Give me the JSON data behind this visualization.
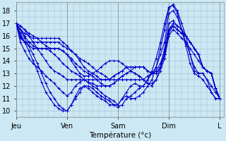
{
  "xlabel": "Température (°c)",
  "bg_color": "#cce8f4",
  "line_color": "#0000cc",
  "grid_color": "#99bbcc",
  "xtick_labels": [
    "Jeu",
    "Ven",
    "Sam",
    "Dim",
    "L"
  ],
  "xtick_positions": [
    0,
    24,
    48,
    72,
    96
  ],
  "ytick_range": [
    10,
    11,
    12,
    13,
    14,
    15,
    16,
    17,
    18
  ],
  "ylim": [
    9.5,
    18.7
  ],
  "xlim": [
    0,
    98
  ],
  "time_hours": [
    0,
    2,
    4,
    6,
    8,
    10,
    12,
    14,
    16,
    18,
    20,
    22,
    24,
    26,
    28,
    30,
    32,
    34,
    36,
    38,
    40,
    42,
    44,
    46,
    48,
    50,
    52,
    54,
    56,
    58,
    60,
    62,
    64,
    66,
    68,
    70,
    72,
    74,
    76,
    78,
    80,
    82,
    84,
    86,
    88,
    90,
    92,
    94,
    96
  ],
  "ensemble_members": [
    [
      17.0,
      16.5,
      15.8,
      15.2,
      14.5,
      13.8,
      13.0,
      12.2,
      11.5,
      11.0,
      10.5,
      10.2,
      10.0,
      10.5,
      11.2,
      11.8,
      12.0,
      11.8,
      11.5,
      11.2,
      11.0,
      10.8,
      10.5,
      10.5,
      10.5,
      11.0,
      11.2,
      11.0,
      11.0,
      11.2,
      11.5,
      12.0,
      12.5,
      13.5,
      15.0,
      16.5,
      18.2,
      18.5,
      18.0,
      17.0,
      16.0,
      14.5,
      13.2,
      13.0,
      13.0,
      12.5,
      11.5,
      11.0,
      11.0
    ],
    [
      17.0,
      16.2,
      15.5,
      14.8,
      14.0,
      13.2,
      12.3,
      11.5,
      11.0,
      10.5,
      10.2,
      10.0,
      10.0,
      10.5,
      11.0,
      11.5,
      12.0,
      12.0,
      11.8,
      11.5,
      11.2,
      11.0,
      10.8,
      10.5,
      10.3,
      10.5,
      11.0,
      11.2,
      11.5,
      11.8,
      12.0,
      12.5,
      13.2,
      14.2,
      15.5,
      17.0,
      18.3,
      18.4,
      17.8,
      16.5,
      15.2,
      13.8,
      13.0,
      12.8,
      12.5,
      12.0,
      11.5,
      11.0,
      11.0
    ],
    [
      17.0,
      15.5,
      14.8,
      14.2,
      13.8,
      13.5,
      13.2,
      12.8,
      12.5,
      12.2,
      11.8,
      11.5,
      11.2,
      11.5,
      12.0,
      12.3,
      12.5,
      12.3,
      12.0,
      11.8,
      11.5,
      11.2,
      11.0,
      10.8,
      10.5,
      11.0,
      11.5,
      12.0,
      12.2,
      12.0,
      12.0,
      12.5,
      13.0,
      13.5,
      14.5,
      15.5,
      17.8,
      18.0,
      17.5,
      16.5,
      15.5,
      14.5,
      13.5,
      13.0,
      13.0,
      12.5,
      12.0,
      11.5,
      11.0
    ],
    [
      17.0,
      16.5,
      16.0,
      15.5,
      15.2,
      15.0,
      15.0,
      15.0,
      14.8,
      14.5,
      14.2,
      13.8,
      13.5,
      13.2,
      13.0,
      12.8,
      12.5,
      12.3,
      12.2,
      12.0,
      12.0,
      12.0,
      12.0,
      12.2,
      12.5,
      12.8,
      13.0,
      13.2,
      13.0,
      12.8,
      12.5,
      12.2,
      12.0,
      12.5,
      13.5,
      15.0,
      17.0,
      17.2,
      16.8,
      16.5,
      16.0,
      15.5,
      15.0,
      14.5,
      13.5,
      13.2,
      13.0,
      11.8,
      11.0
    ],
    [
      17.0,
      16.0,
      15.5,
      15.2,
      15.0,
      15.0,
      15.0,
      15.0,
      15.0,
      15.0,
      15.0,
      14.8,
      14.5,
      14.2,
      13.8,
      13.5,
      13.2,
      13.0,
      12.8,
      12.5,
      12.2,
      12.0,
      12.0,
      12.2,
      12.5,
      12.8,
      13.0,
      13.2,
      13.5,
      13.5,
      13.5,
      13.2,
      13.0,
      13.0,
      13.5,
      14.5,
      16.5,
      16.8,
      16.5,
      16.2,
      16.0,
      15.5,
      15.0,
      14.5,
      13.5,
      13.2,
      13.0,
      11.8,
      11.0
    ],
    [
      17.0,
      15.8,
      15.5,
      15.5,
      15.5,
      15.5,
      15.5,
      15.5,
      15.5,
      15.5,
      15.5,
      15.2,
      15.0,
      14.8,
      14.5,
      14.0,
      13.5,
      13.2,
      13.0,
      12.8,
      12.5,
      12.5,
      12.5,
      12.8,
      13.0,
      13.2,
      13.5,
      13.5,
      13.5,
      13.5,
      13.5,
      13.2,
      13.0,
      13.0,
      13.5,
      14.5,
      16.5,
      16.8,
      16.5,
      16.2,
      16.0,
      15.5,
      15.0,
      14.5,
      13.5,
      13.2,
      13.0,
      11.8,
      11.0
    ],
    [
      17.0,
      16.8,
      16.5,
      16.2,
      16.0,
      15.8,
      15.5,
      15.2,
      15.0,
      15.0,
      15.0,
      14.8,
      14.5,
      14.0,
      13.5,
      13.0,
      12.8,
      12.8,
      13.0,
      13.2,
      13.5,
      13.8,
      14.0,
      14.0,
      14.0,
      13.8,
      13.5,
      13.2,
      13.0,
      12.8,
      12.5,
      12.2,
      12.2,
      12.5,
      13.2,
      14.2,
      16.0,
      16.5,
      16.2,
      15.8,
      15.5,
      15.0,
      14.5,
      14.0,
      13.5,
      13.2,
      13.0,
      11.8,
      11.0
    ],
    [
      17.0,
      16.5,
      16.2,
      16.0,
      15.8,
      15.8,
      15.8,
      15.8,
      15.8,
      15.8,
      15.8,
      15.5,
      15.2,
      14.8,
      14.5,
      14.2,
      14.0,
      13.8,
      13.5,
      13.2,
      13.0,
      12.8,
      12.5,
      12.5,
      12.5,
      12.5,
      12.5,
      12.5,
      12.5,
      12.5,
      12.5,
      12.8,
      13.0,
      13.2,
      13.8,
      14.8,
      16.2,
      16.8,
      16.5,
      16.2,
      16.0,
      15.5,
      15.0,
      14.5,
      13.5,
      13.2,
      13.0,
      11.8,
      11.0
    ],
    [
      17.0,
      16.8,
      16.5,
      16.0,
      15.5,
      15.0,
      14.5,
      14.0,
      13.5,
      13.2,
      13.0,
      12.8,
      12.5,
      12.5,
      12.5,
      12.5,
      12.5,
      12.5,
      12.5,
      12.5,
      12.5,
      12.5,
      12.5,
      12.8,
      13.0,
      13.2,
      13.5,
      13.5,
      13.5,
      13.5,
      13.5,
      13.2,
      13.0,
      13.0,
      13.5,
      14.5,
      16.5,
      17.0,
      16.8,
      16.5,
      16.0,
      15.5,
      15.0,
      14.5,
      13.5,
      13.2,
      13.0,
      11.8,
      11.0
    ]
  ]
}
